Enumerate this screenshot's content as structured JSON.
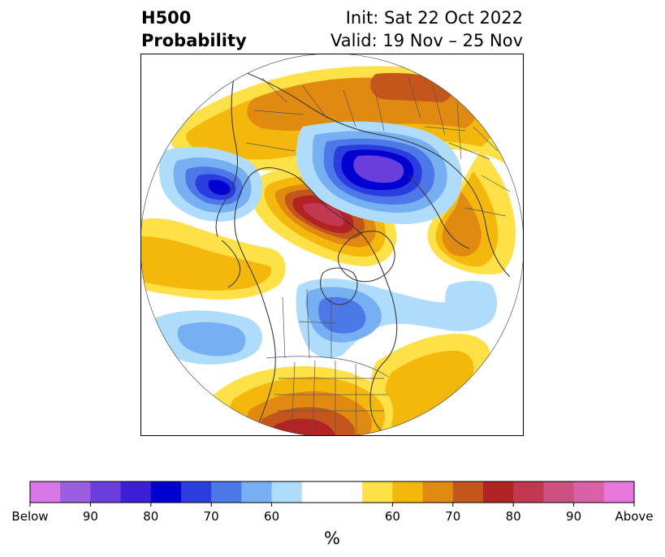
{
  "header": {
    "title_line1": "H500",
    "title_line2": "Probability",
    "init_text": "Init: Sat 22 Oct 2022",
    "valid_text": "Valid: 19 Nov – 25 Nov"
  },
  "colorbar": {
    "unit_label": "%",
    "colors": [
      "#d878e8",
      "#9a5ee0",
      "#6a3edc",
      "#3c1ed6",
      "#0000d0",
      "#2a3ee0",
      "#4d78e8",
      "#76b0f2",
      "#aedcfa",
      "#ffffff",
      "#ffffff",
      "#fde146",
      "#f4b80c",
      "#e08a12",
      "#c4561c",
      "#b22424",
      "#c23850",
      "#cc5080",
      "#da60a8",
      "#e878dc"
    ],
    "ticks": [
      "Below",
      "90",
      "80",
      "70",
      "60",
      "60",
      "70",
      "80",
      "90",
      "Above"
    ]
  },
  "map": {
    "projection": "north-polar-stereographic",
    "palette": {
      "blue_light": "#aedcfa",
      "blue_mid": "#76b0f2",
      "blue": "#4d78e8",
      "blue_dark": "#2a3ee0",
      "blue_deep": "#0000d0",
      "purple": "#6a3edc",
      "yellow": "#fde146",
      "orange_light": "#f4b80c",
      "orange": "#e08a12",
      "orange_dark": "#c4561c",
      "red": "#b22424",
      "red_pink": "#c23850",
      "pink": "#cc5080"
    }
  }
}
